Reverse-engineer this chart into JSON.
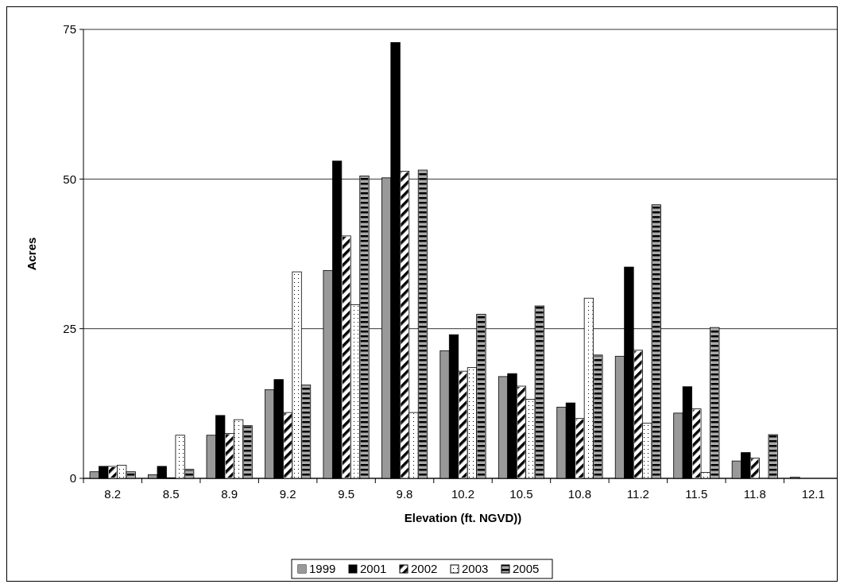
{
  "chart_data": {
    "type": "bar",
    "xlabel": "Elevation (ft. NGVD))",
    "ylabel": "Acres",
    "categories": [
      "8.2",
      "8.5",
      "8.9",
      "9.2",
      "9.5",
      "9.8",
      "10.2",
      "10.5",
      "10.8",
      "11.2",
      "11.5",
      "11.8",
      "12.1"
    ],
    "series": [
      {
        "name": "1999",
        "color": "#999999",
        "values": [
          1.1,
          0.6,
          7.2,
          14.8,
          34.7,
          50.2,
          21.3,
          17.0,
          11.9,
          20.4,
          10.9,
          2.9,
          0.2
        ]
      },
      {
        "name": "2001",
        "color": "#000000",
        "values": [
          2.0,
          2.0,
          10.5,
          16.5,
          53.0,
          72.8,
          24.0,
          17.5,
          12.6,
          35.3,
          15.3,
          4.3,
          0
        ]
      },
      {
        "name": "2002",
        "color": "#ffffff",
        "values": [
          2.0,
          0.1,
          7.5,
          11.0,
          40.5,
          51.3,
          17.9,
          15.4,
          10.0,
          21.4,
          11.6,
          3.4,
          0
        ]
      },
      {
        "name": "2003",
        "color": "#ffffff",
        "values": [
          2.2,
          7.2,
          9.8,
          34.5,
          29.0,
          11.0,
          18.5,
          13.2,
          30.1,
          9.2,
          1.0,
          0,
          0
        ]
      },
      {
        "name": "2005",
        "color": "#aaaaaa",
        "values": [
          1.1,
          1.5,
          8.8,
          15.6,
          50.5,
          51.5,
          27.4,
          28.8,
          20.6,
          45.7,
          25.2,
          7.3,
          0
        ]
      }
    ],
    "ylim": [
      0,
      75
    ],
    "yticks": [
      0,
      25,
      50,
      75
    ],
    "grid": "y",
    "legend": "bottom"
  }
}
